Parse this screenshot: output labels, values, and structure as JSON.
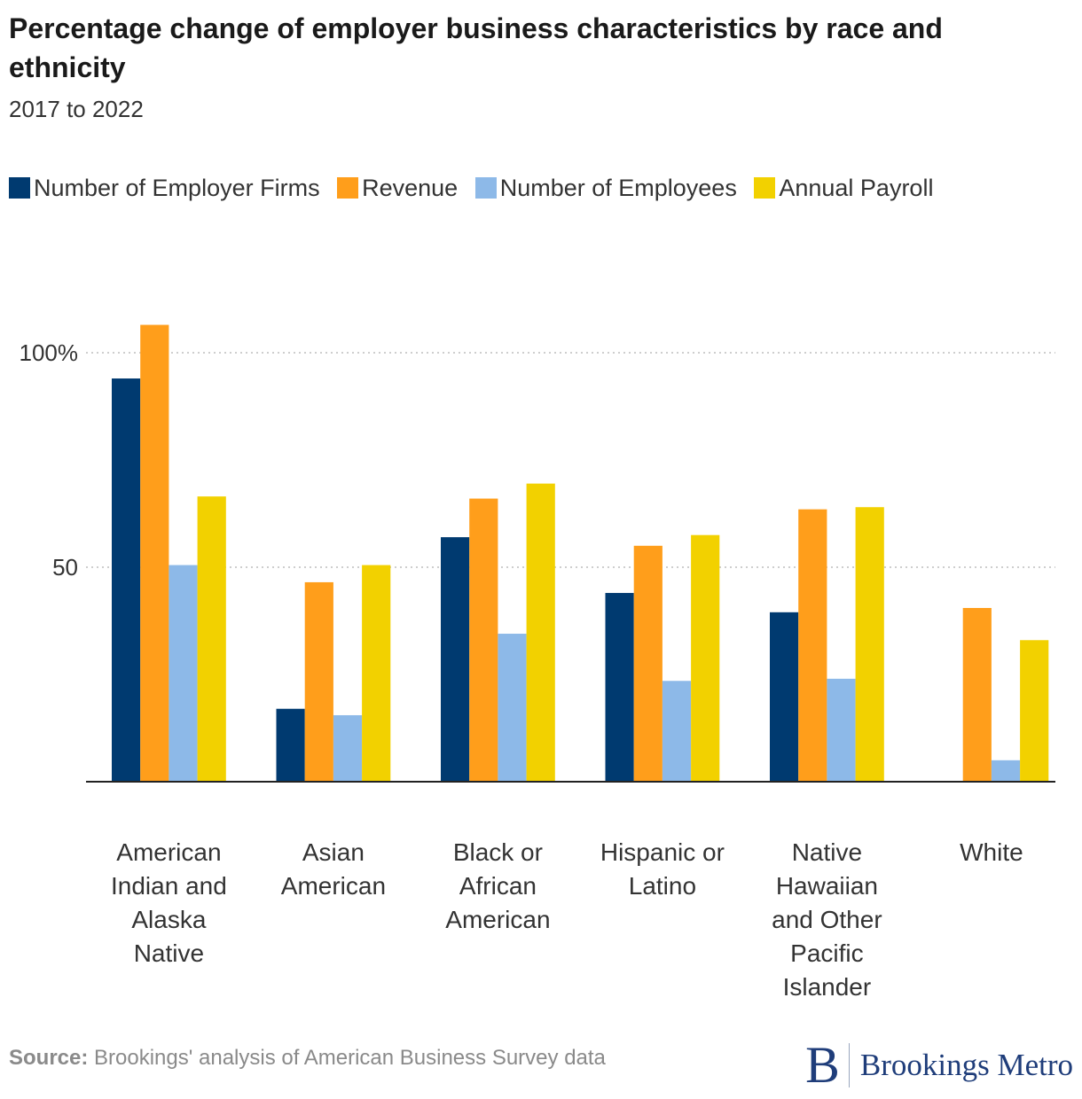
{
  "header": {
    "title": "Percentage change of employer business characteristics by race and ethnicity",
    "subtitle": "2017 to 2022"
  },
  "legend": [
    {
      "label": "Number of Employer Firms",
      "color": "#003a70"
    },
    {
      "label": "Revenue",
      "color": "#ff9e1b"
    },
    {
      "label": "Number of Employees",
      "color": "#8db9e8"
    },
    {
      "label": "Annual Payroll",
      "color": "#f2d100"
    }
  ],
  "footer": {
    "source_label": "Source:",
    "source_text": "Brookings' analysis of American Business Survey data",
    "logo_mark": "B",
    "logo_text": "Brookings Metro"
  },
  "chart_data": {
    "type": "bar",
    "categories": [
      "American Indian and Alaska Native",
      "Asian American",
      "Black or African American",
      "Hispanic or Latino",
      "Native Hawaiian and Other Pacific Islander",
      "White"
    ],
    "category_lines": [
      [
        "American",
        "Indian and",
        "Alaska",
        "Native"
      ],
      [
        "Asian",
        "American"
      ],
      [
        "Black or",
        "African",
        "American"
      ],
      [
        "Hispanic or",
        "Latino"
      ],
      [
        "Native",
        "Hawaiian",
        "and Other",
        "Pacific",
        "Islander"
      ],
      [
        "White"
      ]
    ],
    "series": [
      {
        "name": "Number of Employer Firms",
        "color": "#003a70",
        "values": [
          94,
          17,
          57,
          44,
          39.5,
          0
        ]
      },
      {
        "name": "Revenue",
        "color": "#ff9e1b",
        "values": [
          106.5,
          46.5,
          66,
          55,
          63.5,
          40.5
        ]
      },
      {
        "name": "Number of Employees",
        "color": "#8db9e8",
        "values": [
          50.5,
          15.5,
          34.5,
          23.5,
          24,
          5
        ]
      },
      {
        "name": "Annual Payroll",
        "color": "#f2d100",
        "values": [
          66.5,
          50.5,
          69.5,
          57.5,
          64,
          33
        ]
      }
    ],
    "yticks": [
      {
        "value": 50,
        "label": "50"
      },
      {
        "value": 100,
        "label": "100%"
      }
    ],
    "ylim": [
      0,
      110
    ],
    "xlabel": "",
    "ylabel": "",
    "grid": true
  }
}
